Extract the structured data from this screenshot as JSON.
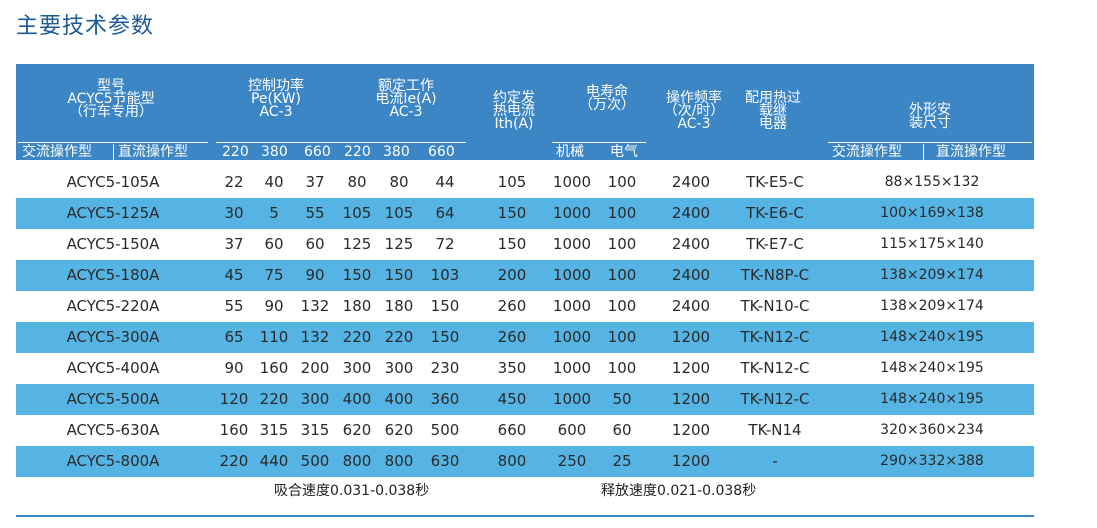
{
  "title": "主要技术参数",
  "header": {
    "model": "型号",
    "series": "ACYC5节能型",
    "usage": "（行车专用）",
    "power_l1": "控制功率",
    "power_l2": "Pe(KW)",
    "power_l3": "AC-3",
    "current_l1": "额定工作",
    "current_l2": "电流Ie(A)",
    "current_l3": "AC-3",
    "thermal_l1": "约定发",
    "thermal_l2": "热电流",
    "thermal_l3": "Ith(A)",
    "life_l1": "电寿命",
    "life_l2": "（万次）",
    "freq_l1": "操作频率",
    "freq_l2": "（次/时）",
    "freq_l3": "AC-3",
    "relay_l1": "配用热过",
    "relay_l2": "载继",
    "relay_l3": "电器",
    "dim_l1": "外形安",
    "dim_l2": "装尺寸",
    "sub_ac": "交流操作型",
    "sub_dc": "直流操作型",
    "volts": [
      "220",
      "380",
      "660",
      "220",
      "380",
      "660"
    ],
    "sub_mech": "机械",
    "sub_elec": "电气",
    "sub_dim_ac": "交流操作型",
    "sub_dim_dc": "直流操作型"
  },
  "rows": [
    {
      "model": "ACYC5-105A",
      "p220": "22",
      "p380": "40",
      "p660": "37",
      "i220": "80",
      "i380": "80",
      "i660": "44",
      "ith": "105",
      "mech": "1000",
      "elec": "100",
      "freq": "2400",
      "relay": "TK-E5-C",
      "dim": "88×155×132"
    },
    {
      "model": "ACYC5-125A",
      "p220": "30",
      "p380": "5",
      "p660": "55",
      "i220": "105",
      "i380": "105",
      "i660": "64",
      "ith": "150",
      "mech": "1000",
      "elec": "100",
      "freq": "2400",
      "relay": "TK-E6-C",
      "dim": "100×169×138"
    },
    {
      "model": "ACYC5-150A",
      "p220": "37",
      "p380": "60",
      "p660": "60",
      "i220": "125",
      "i380": "125",
      "i660": "72",
      "ith": "150",
      "mech": "1000",
      "elec": "100",
      "freq": "2400",
      "relay": "TK-E7-C",
      "dim": "115×175×140"
    },
    {
      "model": "ACYC5-180A",
      "p220": "45",
      "p380": "75",
      "p660": "90",
      "i220": "150",
      "i380": "150",
      "i660": "103",
      "ith": "200",
      "mech": "1000",
      "elec": "100",
      "freq": "2400",
      "relay": "TK-N8P-C",
      "dim": "138×209×174"
    },
    {
      "model": "ACYC5-220A",
      "p220": "55",
      "p380": "90",
      "p660": "132",
      "i220": "180",
      "i380": "180",
      "i660": "150",
      "ith": "260",
      "mech": "1000",
      "elec": "100",
      "freq": "2400",
      "relay": "TK-N10-C",
      "dim": "138×209×174"
    },
    {
      "model": "ACYC5-300A",
      "p220": "65",
      "p380": "110",
      "p660": "132",
      "i220": "220",
      "i380": "220",
      "i660": "150",
      "ith": "260",
      "mech": "1000",
      "elec": "100",
      "freq": "1200",
      "relay": "TK-N12-C",
      "dim": "148×240×195"
    },
    {
      "model": "ACYC5-400A",
      "p220": "90",
      "p380": "160",
      "p660": "200",
      "i220": "300",
      "i380": "300",
      "i660": "230",
      "ith": "350",
      "mech": "1000",
      "elec": "100",
      "freq": "1200",
      "relay": "TK-N12-C",
      "dim": "148×240×195"
    },
    {
      "model": "ACYC5-500A",
      "p220": "120",
      "p380": "220",
      "p660": "300",
      "i220": "400",
      "i380": "400",
      "i660": "360",
      "ith": "450",
      "mech": "1000",
      "elec": "50",
      "freq": "1200",
      "relay": "TK-N12-C",
      "dim": "148×240×195"
    },
    {
      "model": "ACYC5-630A",
      "p220": "160",
      "p380": "315",
      "p660": "315",
      "i220": "620",
      "i380": "620",
      "i660": "500",
      "ith": "660",
      "mech": "600",
      "elec": "60",
      "freq": "1200",
      "relay": "TK-N14",
      "dim": "320×360×234"
    },
    {
      "model": "ACYC5-800A",
      "p220": "220",
      "p380": "440",
      "p660": "500",
      "i220": "800",
      "i380": "800",
      "i660": "630",
      "ith": "800",
      "mech": "250",
      "elec": "25",
      "freq": "1200",
      "relay": "-",
      "dim": "290×332×388"
    }
  ],
  "footer": {
    "pickup": "吸合速度0.031-0.038秒",
    "release": "释放速度0.021-0.038秒"
  },
  "colors": {
    "header": "#3d86c6",
    "stripe": "#56b4e4",
    "title": "#1e5a94"
  }
}
